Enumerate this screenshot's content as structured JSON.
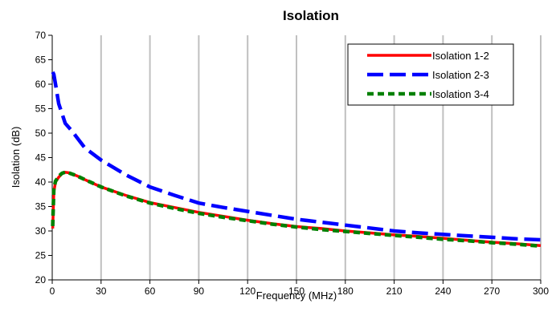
{
  "chart_data": {
    "type": "line",
    "title": "Isolation",
    "xlabel": "Frequency (MHz)",
    "ylabel": "Isolation (dB)",
    "xlim": [
      0,
      300
    ],
    "ylim": [
      20,
      70
    ],
    "x_ticks": [
      0,
      30,
      60,
      90,
      120,
      150,
      180,
      210,
      240,
      270,
      300
    ],
    "y_ticks": [
      20,
      25,
      30,
      35,
      40,
      45,
      50,
      55,
      60,
      65,
      70
    ],
    "grid": "vertical",
    "legend_position": "top-right",
    "series": [
      {
        "name": "Isolation 1-2",
        "color": "#ff0000",
        "dash": "solid",
        "points": [
          [
            0.3,
            30.5
          ],
          [
            1,
            38
          ],
          [
            2,
            40
          ],
          [
            4,
            41
          ],
          [
            6,
            41.7
          ],
          [
            8,
            42
          ],
          [
            10,
            41.9
          ],
          [
            15,
            41.3
          ],
          [
            20,
            40.5
          ],
          [
            30,
            39
          ],
          [
            45,
            37.3
          ],
          [
            60,
            35.8
          ],
          [
            75,
            34.8
          ],
          [
            90,
            33.8
          ],
          [
            105,
            33
          ],
          [
            120,
            32.2
          ],
          [
            135,
            31.5
          ],
          [
            150,
            30.9
          ],
          [
            165,
            30.5
          ],
          [
            180,
            30
          ],
          [
            195,
            29.6
          ],
          [
            210,
            29.2
          ],
          [
            225,
            28.9
          ],
          [
            240,
            28.5
          ],
          [
            255,
            28.1
          ],
          [
            270,
            27.7
          ],
          [
            285,
            27.4
          ],
          [
            300,
            27
          ]
        ]
      },
      {
        "name": "Isolation 2-3",
        "color": "#0000ff",
        "dash": "dashed",
        "points": [
          [
            0.3,
            62.5
          ],
          [
            1,
            62
          ],
          [
            2,
            60
          ],
          [
            4,
            56
          ],
          [
            6,
            54
          ],
          [
            8,
            52
          ],
          [
            12,
            50.5
          ],
          [
            20,
            47
          ],
          [
            30,
            44.5
          ],
          [
            45,
            41.5
          ],
          [
            60,
            39
          ],
          [
            75,
            37.3
          ],
          [
            90,
            35.7
          ],
          [
            105,
            34.8
          ],
          [
            120,
            34
          ],
          [
            135,
            33.2
          ],
          [
            150,
            32.4
          ],
          [
            165,
            31.8
          ],
          [
            180,
            31.2
          ],
          [
            195,
            30.6
          ],
          [
            210,
            30
          ],
          [
            225,
            29.6
          ],
          [
            240,
            29.3
          ],
          [
            255,
            29
          ],
          [
            270,
            28.7
          ],
          [
            285,
            28.4
          ],
          [
            300,
            28.2
          ]
        ]
      },
      {
        "name": "Isolation 3-4",
        "color": "#008000",
        "dash": "dotted",
        "points": [
          [
            0.3,
            31
          ],
          [
            1,
            38.5
          ],
          [
            2,
            40.2
          ],
          [
            4,
            41.2
          ],
          [
            6,
            41.8
          ],
          [
            8,
            42
          ],
          [
            10,
            41.9
          ],
          [
            15,
            41.3
          ],
          [
            20,
            40.5
          ],
          [
            30,
            39
          ],
          [
            45,
            37.2
          ],
          [
            60,
            35.7
          ],
          [
            75,
            34.6
          ],
          [
            90,
            33.6
          ],
          [
            105,
            32.8
          ],
          [
            120,
            32.1
          ],
          [
            135,
            31.4
          ],
          [
            150,
            30.8
          ],
          [
            165,
            30.3
          ],
          [
            180,
            29.9
          ],
          [
            195,
            29.5
          ],
          [
            210,
            29.1
          ],
          [
            225,
            28.7
          ],
          [
            240,
            28.3
          ],
          [
            255,
            28
          ],
          [
            270,
            27.6
          ],
          [
            285,
            27.3
          ],
          [
            300,
            26.9
          ]
        ]
      }
    ]
  }
}
